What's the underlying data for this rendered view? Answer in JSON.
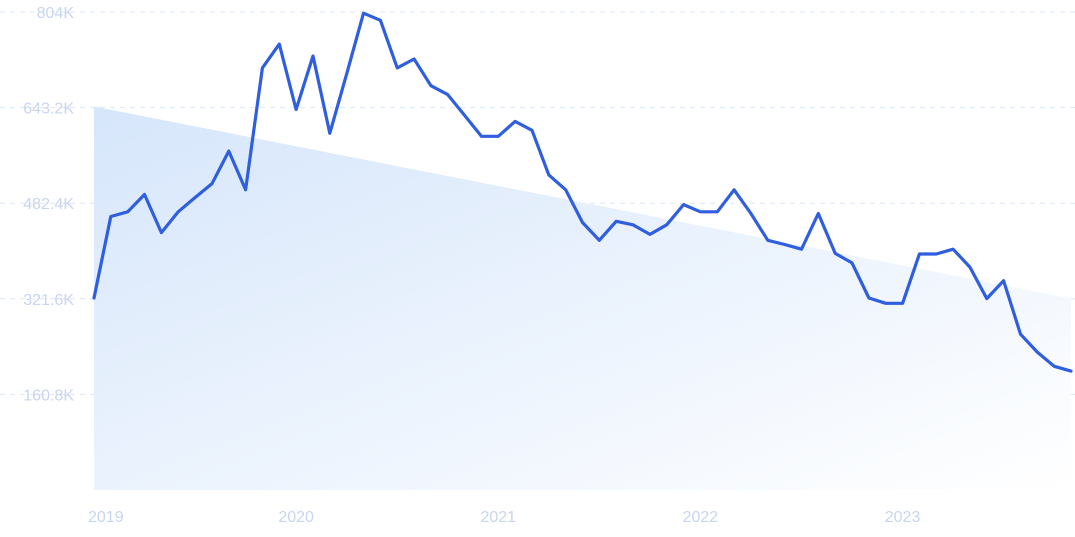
{
  "chart_data": {
    "type": "line",
    "title": "",
    "xlabel": "",
    "ylabel": "",
    "x_tick_labels": [
      "2019",
      "2020",
      "2021",
      "2022",
      "2023"
    ],
    "y_tick_labels": [
      "160.8K",
      "321.6K",
      "482.4K",
      "643.2K",
      "804K"
    ],
    "y_tick_values": [
      160800,
      321600,
      482400,
      643200,
      804000
    ],
    "ylim": [
      0,
      804000
    ],
    "xlim": [
      "2019-01",
      "2023-11"
    ],
    "grid": true,
    "series": [
      {
        "x": [
          "2019-01",
          "2019-02",
          "2019-03",
          "2019-04",
          "2019-05",
          "2019-06",
          "2019-07",
          "2019-08",
          "2019-09",
          "2019-10",
          "2019-11",
          "2019-12",
          "2020-01",
          "2020-02",
          "2020-03",
          "2020-04",
          "2020-05",
          "2020-06",
          "2020-07",
          "2020-08",
          "2020-09",
          "2020-10",
          "2020-11",
          "2020-12",
          "2021-01",
          "2021-02",
          "2021-03",
          "2021-04",
          "2021-05",
          "2021-06",
          "2021-07",
          "2021-08",
          "2021-09",
          "2021-10",
          "2021-11",
          "2021-12",
          "2022-01",
          "2022-02",
          "2022-03",
          "2022-04",
          "2022-05",
          "2022-06",
          "2022-07",
          "2022-08",
          "2022-09",
          "2022-10",
          "2022-11",
          "2022-12",
          "2023-01",
          "2023-02",
          "2023-03",
          "2023-04",
          "2023-05",
          "2023-06",
          "2023-07",
          "2023-08",
          "2023-09",
          "2023-10",
          "2023-11"
        ],
        "values": [
          323000,
          460000,
          468000,
          497000,
          433000,
          468000,
          492000,
          515000,
          570000,
          505000,
          710000,
          750000,
          640000,
          730000,
          600000,
          700000,
          802000,
          790000,
          710000,
          725000,
          680000,
          665000,
          630000,
          595000,
          595000,
          620000,
          605000,
          530000,
          505000,
          450000,
          420000,
          452000,
          446000,
          430000,
          446000,
          480000,
          468000,
          468000,
          505000,
          465000,
          420000,
          413000,
          405000,
          465000,
          398000,
          382000,
          323000,
          314000,
          314000,
          397000,
          397000,
          405000,
          375000,
          322000,
          352000,
          262000,
          232000,
          208000,
          200000
        ],
        "color": "#2f5ee0"
      }
    ],
    "trend_area": {
      "start": 645000,
      "end": 322000,
      "color": "#d6e6fb"
    }
  },
  "colors": {
    "line": "#2f5ee0",
    "grid": "#dce6f5",
    "tick_text": "#c7d5ef",
    "area_start": "#d6e6fb",
    "area_end": "#ffffff"
  }
}
